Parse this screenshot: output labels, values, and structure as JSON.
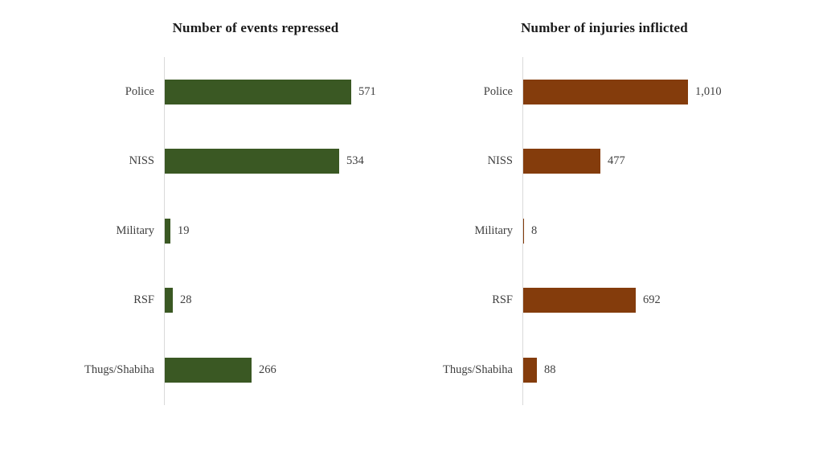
{
  "page": {
    "background": "#ffffff",
    "axis_line_color": "#d9d9d9",
    "label_color": "#404040",
    "title_color": "#1a1a1a"
  },
  "chart_data": [
    {
      "type": "bar",
      "orientation": "horizontal",
      "title": "Number of events repressed",
      "categories": [
        "Police",
        "NISS",
        "Military",
        "RSF",
        "Thugs/Shabiha"
      ],
      "values": [
        571,
        534,
        19,
        28,
        266
      ],
      "value_labels": [
        "571",
        "534",
        "19",
        "28",
        "266"
      ],
      "bar_color": "#3a5823",
      "xlim": [
        0,
        600
      ],
      "grid": false,
      "legend": false,
      "data_labels": "outside-end"
    },
    {
      "type": "bar",
      "orientation": "horizontal",
      "title": "Number of injuries inflicted",
      "categories": [
        "Police",
        "NISS",
        "Military",
        "RSF",
        "Thugs/Shabiha"
      ],
      "values": [
        1010,
        477,
        8,
        692,
        88
      ],
      "value_labels": [
        "1,010",
        "477",
        "8",
        "692",
        "88"
      ],
      "bar_color": "#843c0c",
      "xlim": [
        0,
        1200
      ],
      "grid": false,
      "legend": false,
      "data_labels": "outside-end"
    }
  ]
}
